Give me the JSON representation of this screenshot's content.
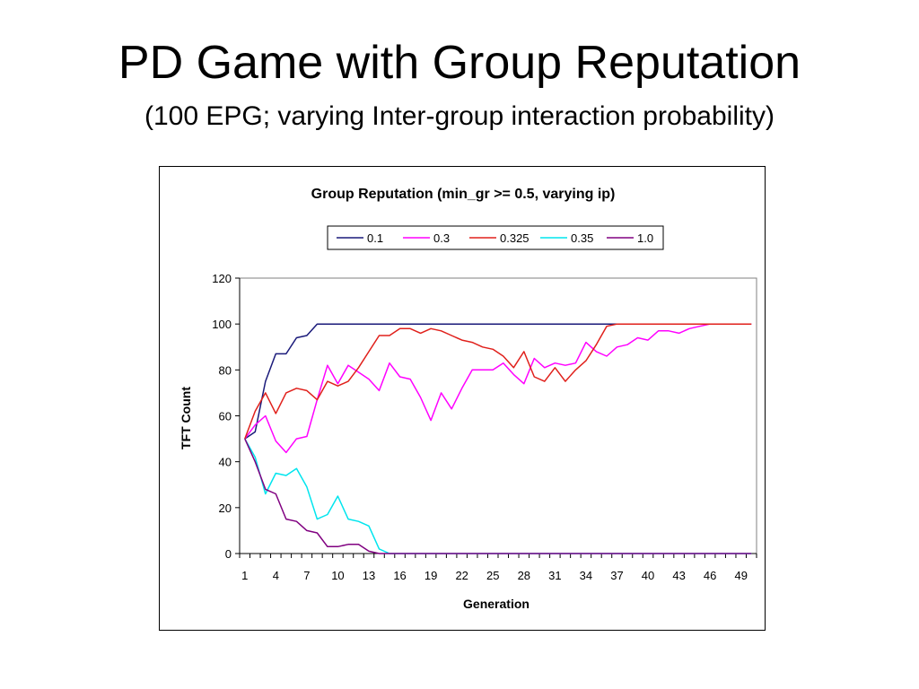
{
  "slide": {
    "title": "PD Game with Group Reputation",
    "subtitle": "(100 EPG; varying Inter-group interaction probability)"
  },
  "chart_data": {
    "type": "line",
    "title": "Group Reputation (min_gr >= 0.5, varying ip)",
    "xlabel": "Generation",
    "ylabel": "TFT Count",
    "ylim": [
      0,
      120
    ],
    "yticks": [
      0,
      20,
      40,
      60,
      80,
      100,
      120
    ],
    "xlim": [
      1,
      50
    ],
    "xticks": [
      1,
      4,
      7,
      10,
      13,
      16,
      19,
      22,
      25,
      28,
      31,
      34,
      37,
      40,
      43,
      46,
      49
    ],
    "grid": false,
    "legend_position": "top",
    "series": [
      {
        "name": "0.1",
        "color": "#1a1a7a",
        "values": [
          50,
          53,
          75,
          87,
          87,
          94,
          95,
          100,
          100,
          100,
          100,
          100,
          100,
          100,
          100,
          100,
          100,
          100,
          100,
          100,
          100,
          100,
          100,
          100,
          100,
          100,
          100,
          100,
          100,
          100,
          100,
          100,
          100,
          100,
          100,
          100,
          100,
          100,
          100,
          100,
          100,
          100,
          100,
          100,
          100,
          100,
          100,
          100,
          100,
          100
        ]
      },
      {
        "name": "0.3",
        "color": "#ff00ff",
        "values": [
          50,
          56,
          60,
          49,
          44,
          50,
          51,
          67,
          82,
          74,
          82,
          79,
          76,
          71,
          83,
          77,
          76,
          68,
          58,
          70,
          63,
          72,
          80,
          80,
          80,
          83,
          78,
          74,
          85,
          81,
          83,
          82,
          83,
          92,
          88,
          86,
          90,
          91,
          94,
          93,
          97,
          97,
          96,
          98,
          99,
          100,
          100,
          100,
          100,
          100
        ]
      },
      {
        "name": "0.325",
        "color": "#e0201b",
        "values": [
          50,
          62,
          70,
          61,
          70,
          72,
          71,
          67,
          75,
          73,
          75,
          81,
          88,
          95,
          95,
          98,
          98,
          96,
          98,
          97,
          95,
          93,
          92,
          90,
          89,
          86,
          81,
          88,
          77,
          75,
          81,
          75,
          80,
          84,
          91,
          99,
          100,
          100,
          100,
          100,
          100,
          100,
          100,
          100,
          100,
          100,
          100,
          100,
          100,
          100
        ]
      },
      {
        "name": "0.35",
        "color": "#00e5ee",
        "values": [
          50,
          42,
          26,
          35,
          34,
          37,
          29,
          15,
          17,
          25,
          15,
          14,
          12,
          2,
          0,
          0,
          0,
          0,
          0,
          0,
          0,
          0,
          0,
          0,
          0,
          0,
          0,
          0,
          0,
          0,
          0,
          0,
          0,
          0,
          0,
          0,
          0,
          0,
          0,
          0,
          0,
          0,
          0,
          0,
          0,
          0,
          0,
          0,
          0,
          0
        ]
      },
      {
        "name": "1.0",
        "color": "#800080",
        "values": [
          50,
          40,
          28,
          26,
          15,
          14,
          10,
          9,
          3,
          3,
          4,
          4,
          1,
          0,
          0,
          0,
          0,
          0,
          0,
          0,
          0,
          0,
          0,
          0,
          0,
          0,
          0,
          0,
          0,
          0,
          0,
          0,
          0,
          0,
          0,
          0,
          0,
          0,
          0,
          0,
          0,
          0,
          0,
          0,
          0,
          0,
          0,
          0,
          0,
          0
        ]
      }
    ]
  }
}
